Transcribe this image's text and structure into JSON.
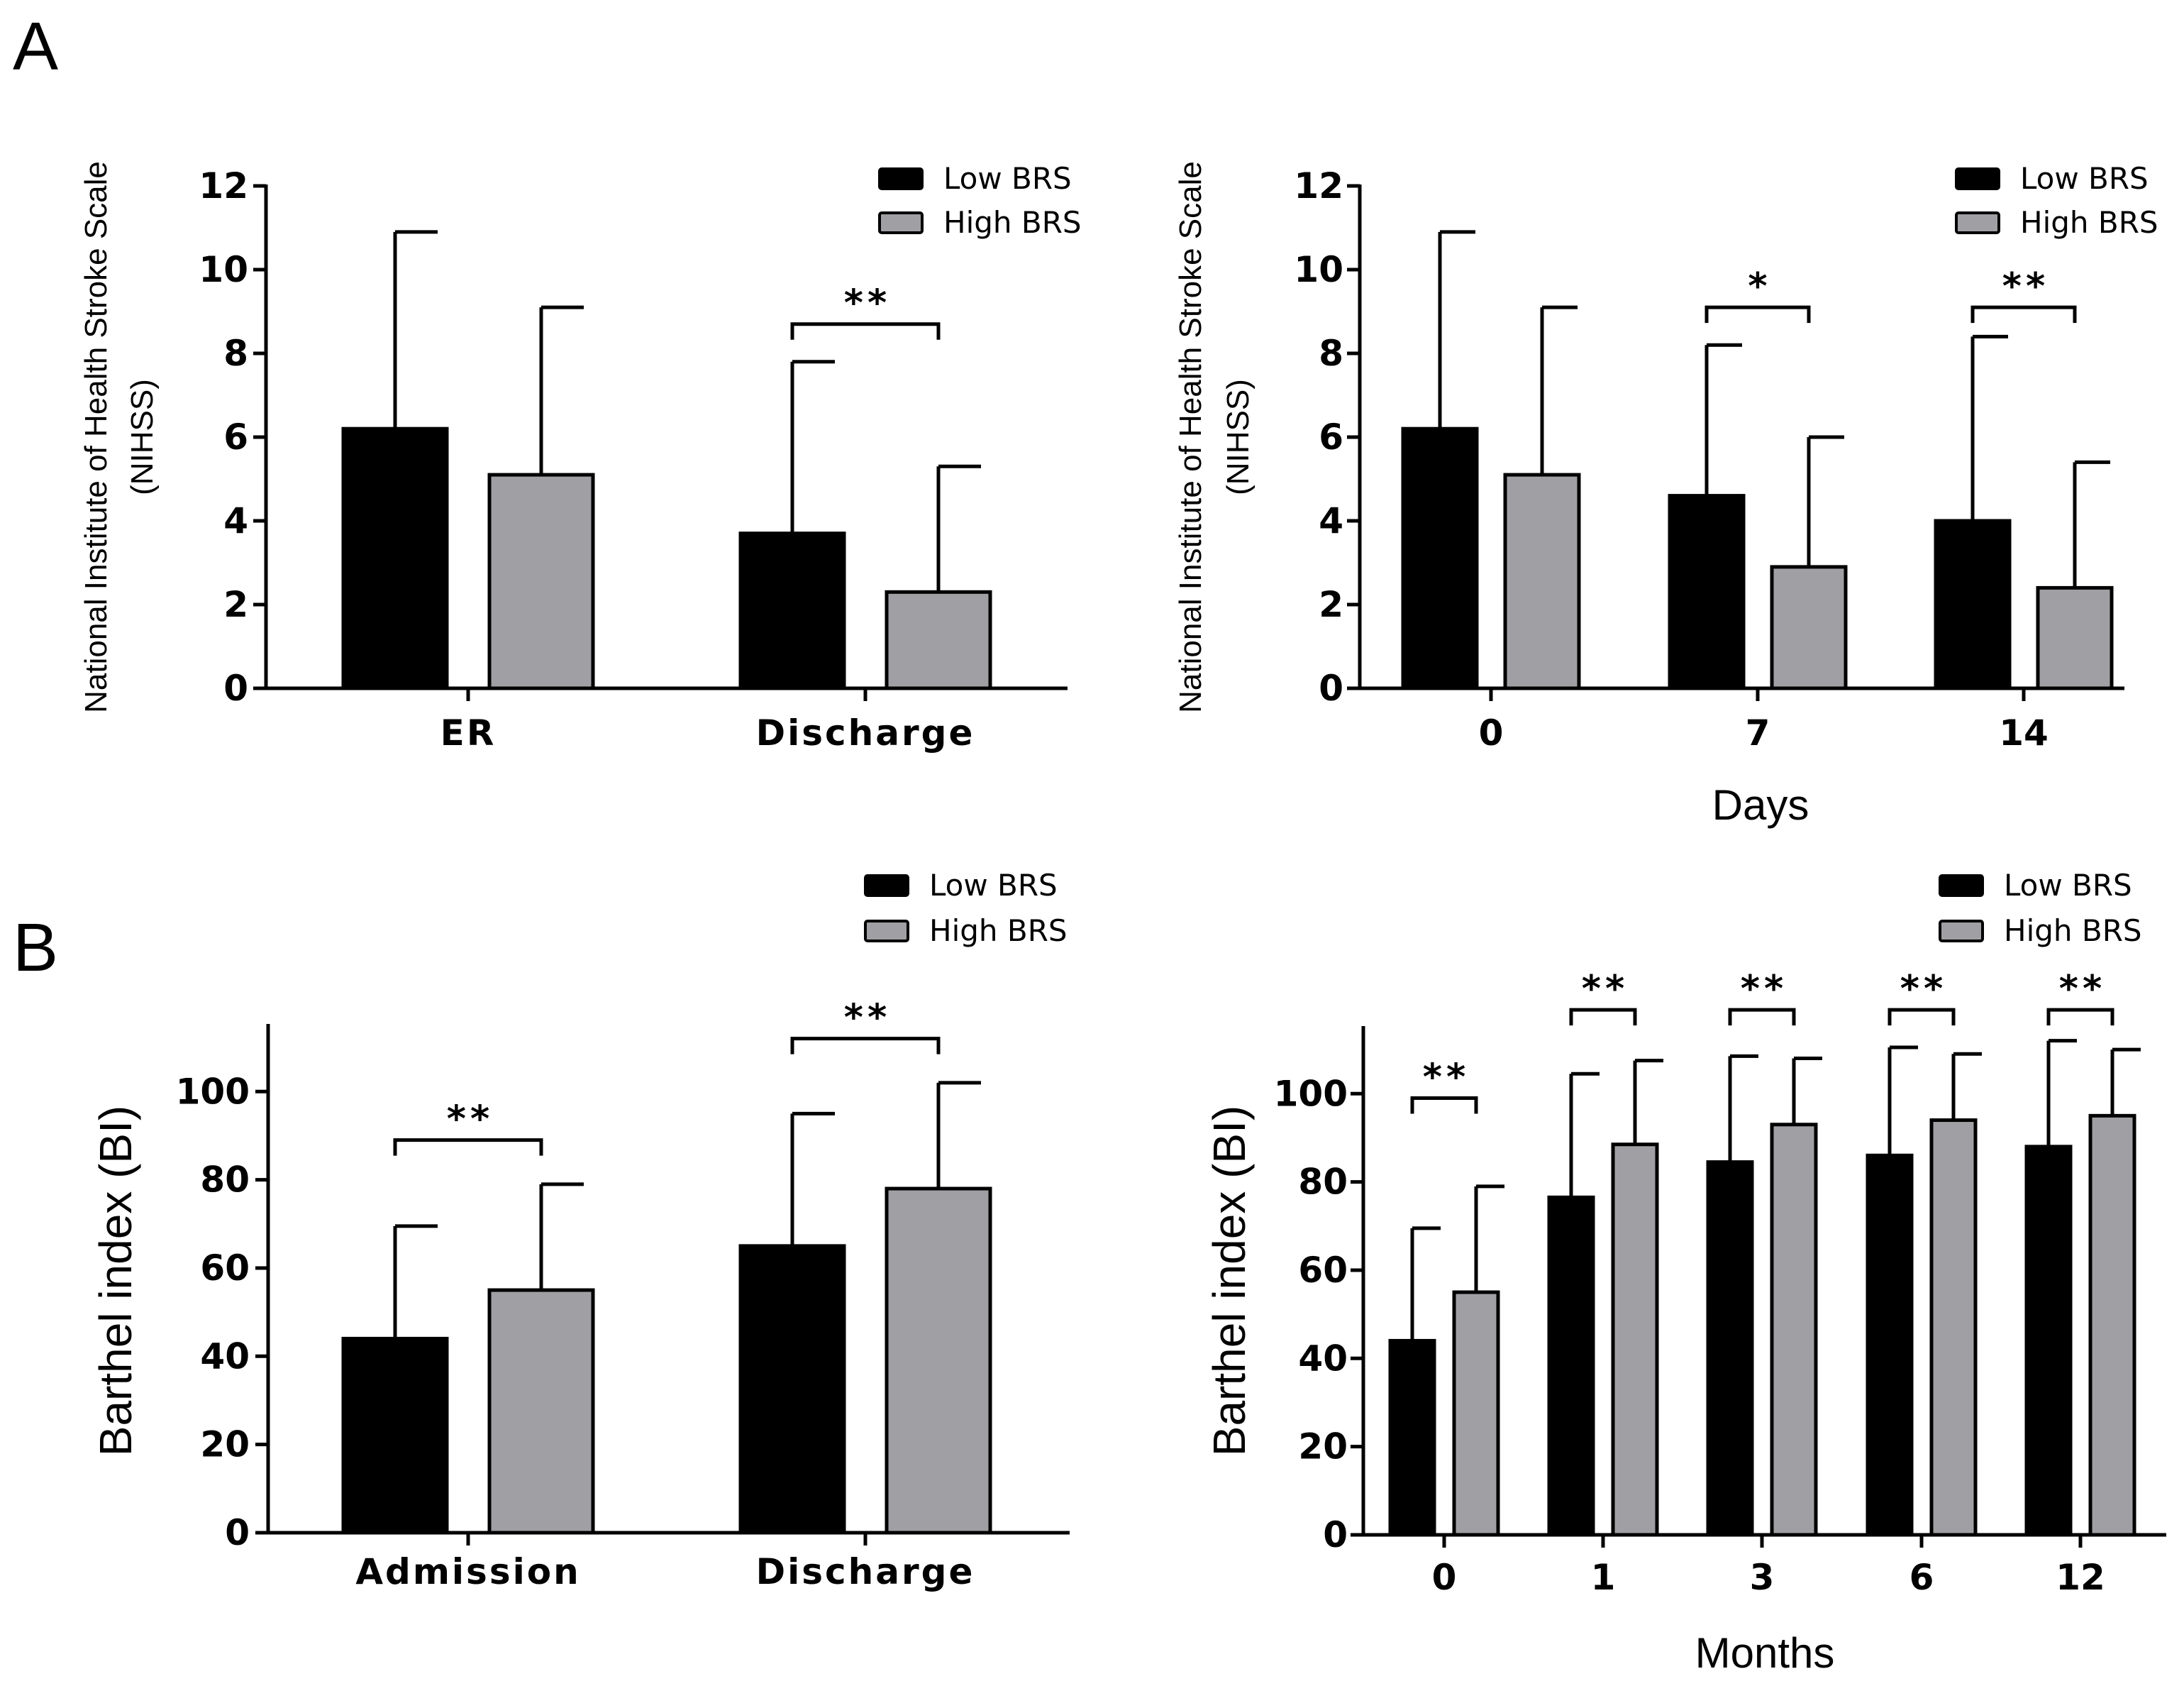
{
  "panels": {
    "a": "A",
    "b": "B"
  },
  "colors": {
    "low": "#000000",
    "high": "#a0a0a4",
    "axis": "#000000"
  },
  "chart_data": [
    {
      "id": "a1",
      "type": "bar",
      "panel": "A",
      "title": "",
      "ylabel": [
        "National Institute of Health Stroke Scale",
        "(NIHSS)"
      ],
      "xlabel": "",
      "ylim": [
        0,
        12
      ],
      "yticks": [
        0,
        2,
        4,
        6,
        8,
        10,
        12
      ],
      "categories": [
        "ER",
        "Discharge"
      ],
      "legend_position": "top-right",
      "series": [
        {
          "name": "Low BRS",
          "values": [
            6.2,
            3.7
          ],
          "errors": [
            10.9,
            7.8
          ]
        },
        {
          "name": "High BRS",
          "values": [
            5.1,
            2.3
          ],
          "errors": [
            9.1,
            5.3
          ]
        }
      ],
      "annotations": [
        {
          "group": 1,
          "label": "**",
          "at": 8.7
        }
      ]
    },
    {
      "id": "a2",
      "type": "bar",
      "panel": "A",
      "title": "",
      "ylabel": [
        "National Institute of Health Stroke Scale",
        "(NIHSS)"
      ],
      "xlabel": "Days",
      "ylim": [
        0,
        12
      ],
      "yticks": [
        0,
        2,
        4,
        6,
        8,
        10,
        12
      ],
      "categories": [
        "0",
        "7",
        "14"
      ],
      "legend_position": "top-right",
      "series": [
        {
          "name": "Low BRS",
          "values": [
            6.2,
            4.6,
            4.0
          ],
          "errors": [
            10.9,
            8.2,
            8.4
          ]
        },
        {
          "name": "High BRS",
          "values": [
            5.1,
            2.9,
            2.4
          ],
          "errors": [
            9.1,
            6.0,
            5.4
          ]
        }
      ],
      "annotations": [
        {
          "group": 1,
          "label": "*",
          "at": 9.1
        },
        {
          "group": 2,
          "label": "**",
          "at": 9.1
        }
      ]
    },
    {
      "id": "b1",
      "type": "bar",
      "panel": "B",
      "title": "",
      "ylabel": [
        "Barthel index (BI)"
      ],
      "xlabel": "",
      "ylim": [
        0,
        115
      ],
      "yticks": [
        0,
        20,
        40,
        60,
        80,
        100
      ],
      "categories": [
        "Admission",
        "Discharge"
      ],
      "legend_position": "top-right",
      "series": [
        {
          "name": "Low BRS",
          "values": [
            44,
            65
          ],
          "errors": [
            69.5,
            95
          ]
        },
        {
          "name": "High BRS",
          "values": [
            55,
            78
          ],
          "errors": [
            79,
            102
          ]
        }
      ],
      "annotations": [
        {
          "group": 0,
          "label": "**",
          "at": 89
        },
        {
          "group": 1,
          "label": "**",
          "at": 112
        }
      ]
    },
    {
      "id": "b2",
      "type": "bar",
      "panel": "B",
      "title": "",
      "ylabel": [
        "Barthel index (BI)"
      ],
      "xlabel": "Months",
      "ylim": [
        0,
        115
      ],
      "yticks": [
        0,
        20,
        40,
        60,
        80,
        100
      ],
      "categories": [
        "0",
        "1",
        "3",
        "6",
        "12"
      ],
      "legend_position": "top-right",
      "series": [
        {
          "name": "Low BRS",
          "values": [
            44,
            76.5,
            84.5,
            86,
            88
          ],
          "errors": [
            69.5,
            104.5,
            108.5,
            110.5,
            112
          ]
        },
        {
          "name": "High BRS",
          "values": [
            55,
            88.5,
            93,
            94,
            95
          ],
          "errors": [
            79,
            107.5,
            108,
            109,
            110
          ]
        }
      ],
      "annotations": [
        {
          "group": 0,
          "label": "**",
          "at": 99
        },
        {
          "group": 1,
          "label": "**",
          "at": 119
        },
        {
          "group": 2,
          "label": "**",
          "at": 119
        },
        {
          "group": 3,
          "label": "**",
          "at": 119
        },
        {
          "group": 4,
          "label": "**",
          "at": 119
        }
      ]
    }
  ]
}
